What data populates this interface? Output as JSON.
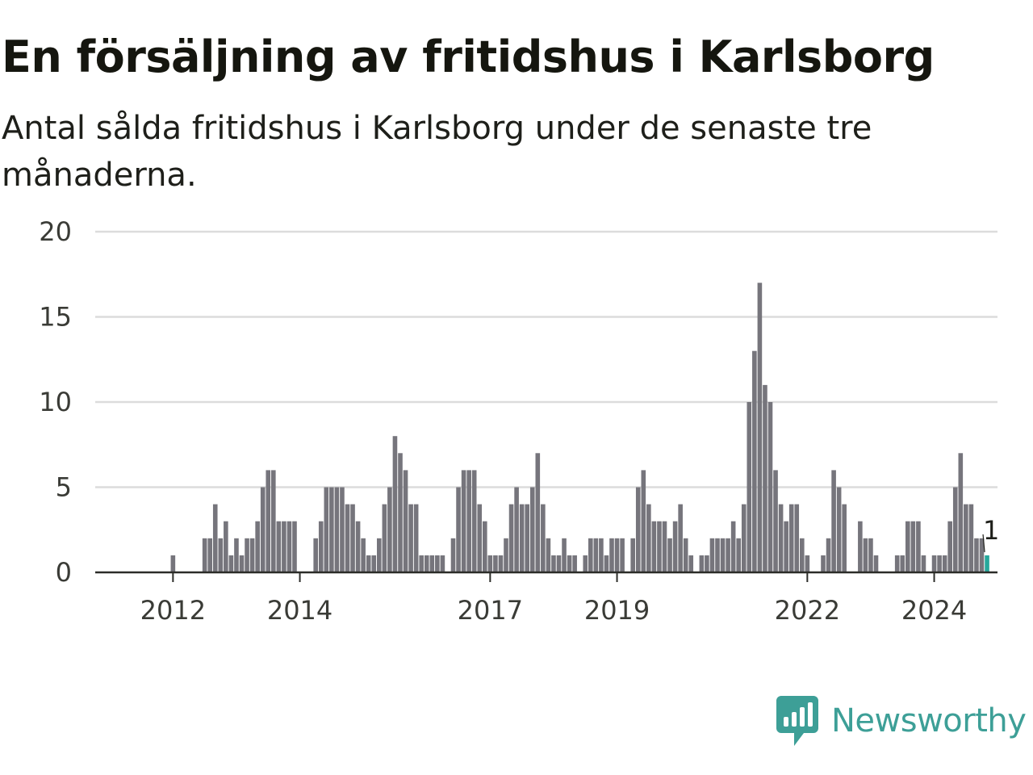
{
  "header": {
    "title": "En försäljning av fritidshus i Karlsborg",
    "subtitle": "Antal sålda fritidshus i Karlsborg under de senaste tre månaderna."
  },
  "brand": {
    "name": "Newsworthy",
    "color": "#3d9f97",
    "icon": "bar-chart-speech-bubble-icon"
  },
  "chart_data": {
    "type": "bar",
    "title": "",
    "xlabel": "",
    "ylabel": "",
    "ylim": [
      0,
      20
    ],
    "yticks": [
      0,
      5,
      10,
      15,
      20
    ],
    "grid": true,
    "bar_color": "#76757c",
    "highlight_color": "#26a89c",
    "xtick_labels": [
      "2012",
      "2014",
      "2017",
      "2019",
      "2022",
      "2024"
    ],
    "xtick_indices": [
      7,
      31,
      67,
      91,
      127,
      151
    ],
    "last_value_label": "1",
    "values": [
      0,
      0,
      0,
      0,
      0,
      0,
      0,
      1,
      0,
      0,
      0,
      0,
      0,
      2,
      2,
      4,
      2,
      3,
      1,
      2,
      1,
      2,
      2,
      3,
      5,
      6,
      6,
      3,
      3,
      3,
      3,
      0,
      0,
      0,
      2,
      3,
      5,
      5,
      5,
      5,
      4,
      4,
      3,
      2,
      1,
      1,
      2,
      4,
      5,
      8,
      7,
      6,
      4,
      4,
      1,
      1,
      1,
      1,
      1,
      0,
      2,
      5,
      6,
      6,
      6,
      4,
      3,
      1,
      1,
      1,
      2,
      4,
      5,
      4,
      4,
      5,
      7,
      4,
      2,
      1,
      1,
      2,
      1,
      1,
      0,
      1,
      2,
      2,
      2,
      1,
      2,
      2,
      2,
      0,
      2,
      5,
      6,
      4,
      3,
      3,
      3,
      2,
      3,
      4,
      2,
      1,
      0,
      1,
      1,
      2,
      2,
      2,
      2,
      3,
      2,
      4,
      10,
      13,
      17,
      11,
      10,
      6,
      4,
      3,
      4,
      4,
      2,
      1,
      0,
      0,
      1,
      2,
      6,
      5,
      4,
      0,
      0,
      3,
      2,
      2,
      1,
      0,
      0,
      0,
      1,
      1,
      3,
      3,
      3,
      1,
      0,
      1,
      1,
      1,
      3,
      5,
      7,
      4,
      4,
      2,
      2,
      1
    ]
  }
}
